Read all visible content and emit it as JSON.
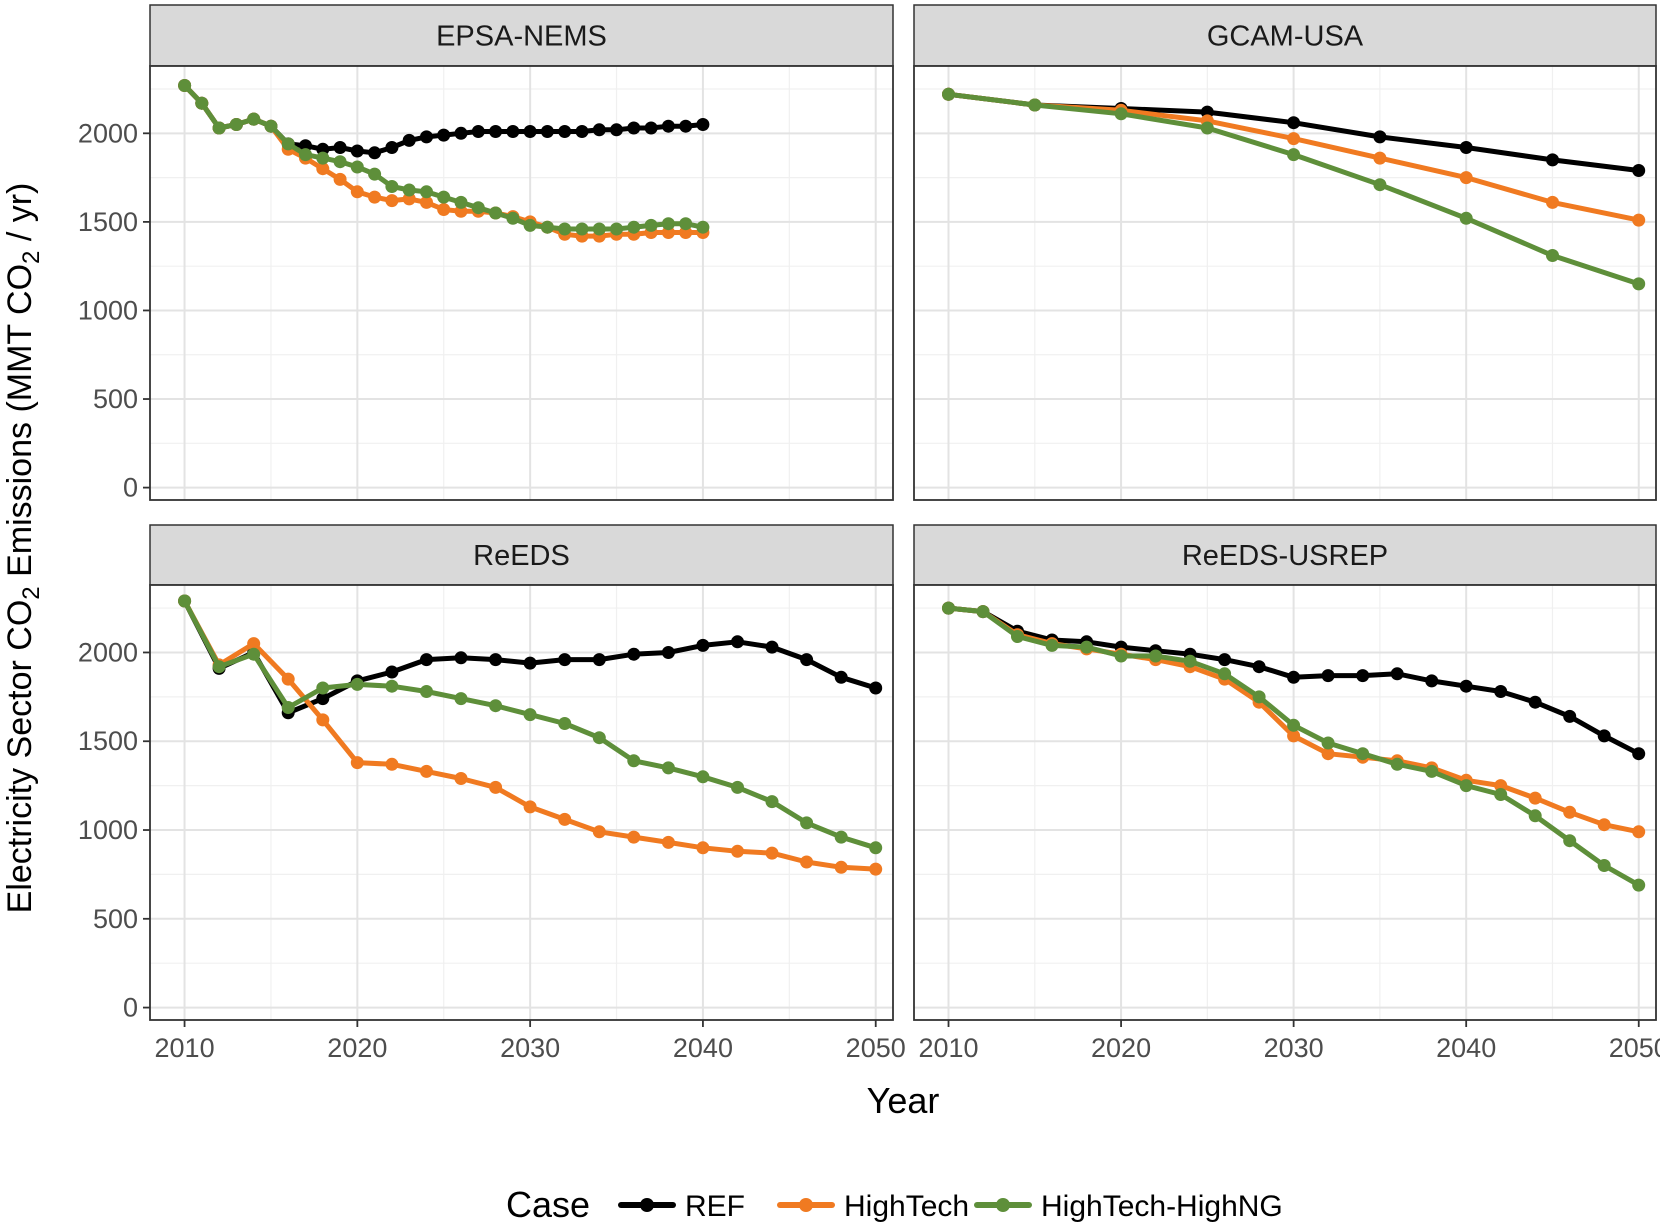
{
  "chart_data": {
    "type": "line",
    "layout": "facet-grid-2x2",
    "xlabel": "Year",
    "ylabel": {
      "main": "Electricity Sector  CO",
      "sub1": "2",
      "mid": "  Emissions (MMT CO",
      "sub2": "2",
      "end": "  / yr)"
    },
    "xticks": [
      2010,
      2020,
      2030,
      2040,
      2050
    ],
    "yticks": [
      0,
      500,
      1000,
      1500,
      2000
    ],
    "xlim": [
      2008,
      2051
    ],
    "ylim": [
      -70,
      2380
    ],
    "grid": true,
    "legend": {
      "position": "bottom",
      "title": "Case",
      "entries": [
        "REF",
        "HighTech",
        "HighTech-HighNG"
      ]
    },
    "colors": {
      "REF": "#000000",
      "HighTech": "#f07a21",
      "HighTech-HighNG": "#5e8f3a"
    },
    "panels": [
      {
        "title": "EPSA-NEMS",
        "series": [
          {
            "name": "REF",
            "x": [
              2010,
              2011,
              2012,
              2013,
              2014,
              2015,
              2016,
              2017,
              2018,
              2019,
              2020,
              2021,
              2022,
              2023,
              2024,
              2025,
              2026,
              2027,
              2028,
              2029,
              2030,
              2031,
              2032,
              2033,
              2034,
              2035,
              2036,
              2037,
              2038,
              2039,
              2040
            ],
            "y": [
              2270,
              2170,
              2030,
              2050,
              2080,
              2040,
              1940,
              1930,
              1910,
              1920,
              1900,
              1890,
              1920,
              1960,
              1980,
              1990,
              2000,
              2010,
              2010,
              2010,
              2010,
              2010,
              2010,
              2010,
              2020,
              2020,
              2030,
              2030,
              2040,
              2040,
              2050
            ]
          },
          {
            "name": "HighTech",
            "x": [
              2010,
              2011,
              2012,
              2013,
              2014,
              2015,
              2016,
              2017,
              2018,
              2019,
              2020,
              2021,
              2022,
              2023,
              2024,
              2025,
              2026,
              2027,
              2028,
              2029,
              2030,
              2031,
              2032,
              2033,
              2034,
              2035,
              2036,
              2037,
              2038,
              2039,
              2040
            ],
            "y": [
              2270,
              2170,
              2030,
              2050,
              2080,
              2040,
              1910,
              1860,
              1800,
              1740,
              1670,
              1640,
              1620,
              1630,
              1610,
              1570,
              1560,
              1560,
              1550,
              1530,
              1500,
              1470,
              1430,
              1420,
              1420,
              1430,
              1430,
              1440,
              1440,
              1440,
              1440
            ]
          },
          {
            "name": "HighTech-HighNG",
            "x": [
              2010,
              2011,
              2012,
              2013,
              2014,
              2015,
              2016,
              2017,
              2018,
              2019,
              2020,
              2021,
              2022,
              2023,
              2024,
              2025,
              2026,
              2027,
              2028,
              2029,
              2030,
              2031,
              2032,
              2033,
              2034,
              2035,
              2036,
              2037,
              2038,
              2039,
              2040
            ],
            "y": [
              2270,
              2170,
              2030,
              2050,
              2080,
              2040,
              1940,
              1880,
              1860,
              1840,
              1810,
              1770,
              1700,
              1680,
              1670,
              1640,
              1610,
              1580,
              1550,
              1520,
              1480,
              1470,
              1460,
              1460,
              1460,
              1460,
              1470,
              1480,
              1490,
              1490,
              1470
            ]
          }
        ]
      },
      {
        "title": "GCAM-USA",
        "series": [
          {
            "name": "REF",
            "x": [
              2010,
              2015,
              2020,
              2025,
              2030,
              2035,
              2040,
              2045,
              2050
            ],
            "y": [
              2220,
              2160,
              2140,
              2120,
              2060,
              1980,
              1920,
              1850,
              1790
            ]
          },
          {
            "name": "HighTech",
            "x": [
              2010,
              2015,
              2020,
              2025,
              2030,
              2035,
              2040,
              2045,
              2050
            ],
            "y": [
              2220,
              2160,
              2130,
              2070,
              1970,
              1860,
              1750,
              1610,
              1510
            ]
          },
          {
            "name": "HighTech-HighNG",
            "x": [
              2010,
              2015,
              2020,
              2025,
              2030,
              2035,
              2040,
              2045,
              2050
            ],
            "y": [
              2220,
              2160,
              2110,
              2030,
              1880,
              1710,
              1520,
              1310,
              1150
            ]
          }
        ]
      },
      {
        "title": "ReEDS",
        "series": [
          {
            "name": "REF",
            "x": [
              2010,
              2012,
              2014,
              2016,
              2018,
              2020,
              2022,
              2024,
              2026,
              2028,
              2030,
              2032,
              2034,
              2036,
              2038,
              2040,
              2042,
              2044,
              2046,
              2048,
              2050
            ],
            "y": [
              2290,
              1910,
              2000,
              1660,
              1740,
              1840,
              1890,
              1960,
              1970,
              1960,
              1940,
              1960,
              1960,
              1990,
              2000,
              2040,
              2060,
              2030,
              1960,
              1860,
              1800
            ]
          },
          {
            "name": "HighTech",
            "x": [
              2010,
              2012,
              2014,
              2016,
              2018,
              2020,
              2022,
              2024,
              2026,
              2028,
              2030,
              2032,
              2034,
              2036,
              2038,
              2040,
              2042,
              2044,
              2046,
              2048,
              2050
            ],
            "y": [
              2290,
              1930,
              2050,
              1850,
              1620,
              1380,
              1370,
              1330,
              1290,
              1240,
              1130,
              1060,
              990,
              960,
              930,
              900,
              880,
              870,
              820,
              790,
              780
            ]
          },
          {
            "name": "HighTech-HighNG",
            "x": [
              2010,
              2012,
              2014,
              2016,
              2018,
              2020,
              2022,
              2024,
              2026,
              2028,
              2030,
              2032,
              2034,
              2036,
              2038,
              2040,
              2042,
              2044,
              2046,
              2048,
              2050
            ],
            "y": [
              2290,
              1920,
              1990,
              1690,
              1800,
              1820,
              1810,
              1780,
              1740,
              1700,
              1650,
              1600,
              1520,
              1390,
              1350,
              1300,
              1240,
              1160,
              1040,
              960,
              900
            ]
          }
        ]
      },
      {
        "title": "ReEDS-USREP",
        "series": [
          {
            "name": "REF",
            "x": [
              2010,
              2012,
              2014,
              2016,
              2018,
              2020,
              2022,
              2024,
              2026,
              2028,
              2030,
              2032,
              2034,
              2036,
              2038,
              2040,
              2042,
              2044,
              2046,
              2048,
              2050
            ],
            "y": [
              2250,
              2230,
              2120,
              2070,
              2060,
              2030,
              2010,
              1990,
              1960,
              1920,
              1860,
              1870,
              1870,
              1880,
              1840,
              1810,
              1780,
              1720,
              1640,
              1530,
              1430
            ]
          },
          {
            "name": "HighTech",
            "x": [
              2010,
              2012,
              2014,
              2016,
              2018,
              2020,
              2022,
              2024,
              2026,
              2028,
              2030,
              2032,
              2034,
              2036,
              2038,
              2040,
              2042,
              2044,
              2046,
              2048,
              2050
            ],
            "y": [
              2250,
              2230,
              2100,
              2050,
              2020,
              1990,
              1960,
              1920,
              1850,
              1720,
              1530,
              1430,
              1410,
              1390,
              1350,
              1280,
              1250,
              1180,
              1100,
              1030,
              990
            ]
          },
          {
            "name": "HighTech-HighNG",
            "x": [
              2010,
              2012,
              2014,
              2016,
              2018,
              2020,
              2022,
              2024,
              2026,
              2028,
              2030,
              2032,
              2034,
              2036,
              2038,
              2040,
              2042,
              2044,
              2046,
              2048,
              2050
            ],
            "y": [
              2250,
              2230,
              2090,
              2040,
              2030,
              1980,
              1980,
              1950,
              1880,
              1750,
              1590,
              1490,
              1430,
              1370,
              1330,
              1250,
              1200,
              1080,
              940,
              800,
              690
            ]
          }
        ]
      }
    ]
  }
}
